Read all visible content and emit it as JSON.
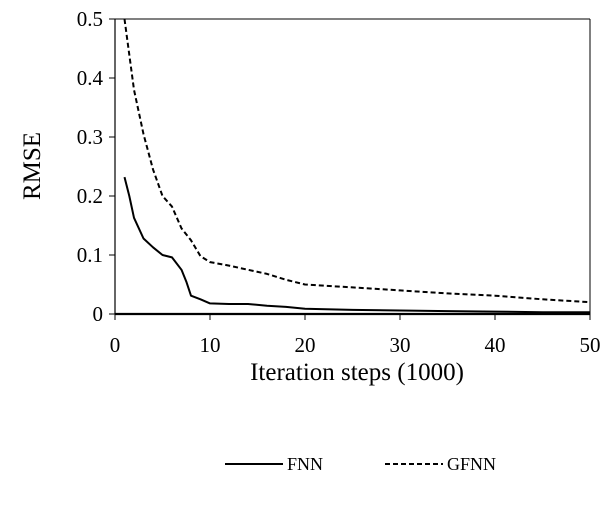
{
  "chart_data": {
    "type": "line",
    "title": "",
    "xlabel": "Iteration steps (1000)",
    "ylabel": "RMSE",
    "xlim": [
      0,
      50
    ],
    "ylim": [
      0,
      0.5
    ],
    "x_ticks": [
      "0",
      "10",
      "20",
      "30",
      "40",
      "50"
    ],
    "y_ticks": [
      "0",
      "0.1",
      "0.2",
      "0.3",
      "0.4",
      "0.5"
    ],
    "grid": false,
    "legend_position": "bottom",
    "series": [
      {
        "name": "FNN",
        "style": "solid",
        "color": "#000000",
        "x": [
          1,
          1.5,
          2,
          3,
          4,
          5,
          6,
          7,
          7.5,
          8,
          9,
          10,
          12,
          14,
          16,
          18,
          20,
          25,
          30,
          35,
          40,
          45,
          50
        ],
        "y": [
          0.232,
          0.2,
          0.163,
          0.128,
          0.113,
          0.1,
          0.096,
          0.075,
          0.055,
          0.031,
          0.025,
          0.018,
          0.017,
          0.017,
          0.014,
          0.012,
          0.009,
          0.007,
          0.006,
          0.005,
          0.004,
          0.003,
          0.003
        ]
      },
      {
        "name": "GFNN",
        "style": "dashed",
        "color": "#000000",
        "x": [
          1,
          2,
          3,
          4,
          5,
          6,
          7,
          8,
          9,
          10,
          12,
          14,
          16,
          18,
          20,
          25,
          30,
          35,
          40,
          45,
          50
        ],
        "y": [
          0.5,
          0.38,
          0.305,
          0.245,
          0.2,
          0.182,
          0.145,
          0.125,
          0.098,
          0.088,
          0.082,
          0.075,
          0.068,
          0.058,
          0.05,
          0.045,
          0.04,
          0.035,
          0.031,
          0.025,
          0.02
        ]
      }
    ]
  }
}
